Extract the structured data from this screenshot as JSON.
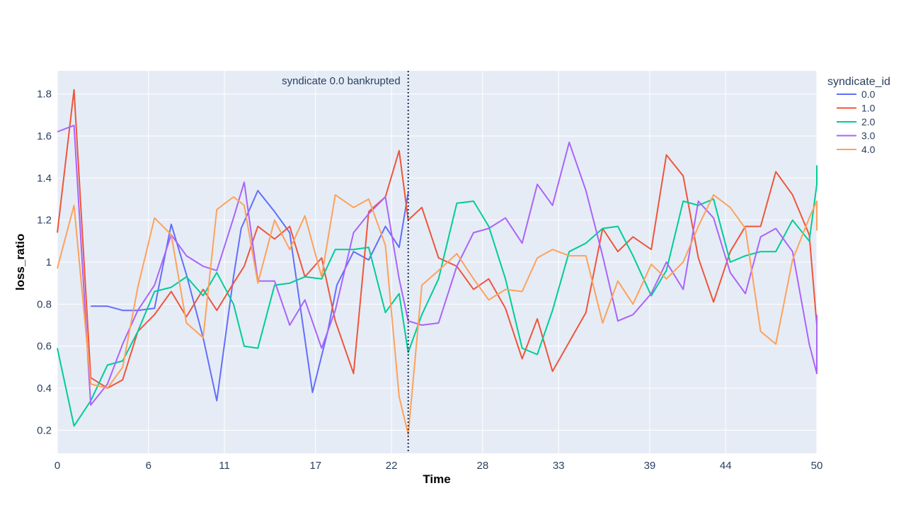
{
  "chart_data": {
    "type": "line",
    "xlabel": "Time",
    "ylabel": "loss_ratio",
    "xlim": [
      0,
      50
    ],
    "ylim": [
      0.09,
      1.91
    ],
    "x_ticks": [
      0,
      6,
      11,
      17,
      22,
      28,
      33,
      39,
      44,
      50
    ],
    "y_ticks": [
      0.2,
      0.4,
      0.6,
      0.8,
      1,
      1.2,
      1.4,
      1.6,
      1.8
    ],
    "y_tick_labels": [
      "0.2",
      "0.4",
      "0.6",
      "0.8",
      "1",
      "1.2",
      "1.4",
      "1.6",
      "1.8"
    ],
    "grid": true,
    "background": "#E5ECF6",
    "legend": {
      "title": "syndicate_id",
      "placement": "top-right"
    },
    "annotations": [
      {
        "type": "vline",
        "x": 23.1,
        "text": "syndicate 0.0 bankrupted",
        "color": "#1f2d4f",
        "style": "dotted"
      }
    ],
    "series": [
      {
        "name": "0.0",
        "color": "#636EFA",
        "points": [
          [
            2.2,
            0.79
          ],
          [
            3.3,
            0.79
          ],
          [
            4.3,
            0.77
          ],
          [
            5.3,
            0.77
          ],
          [
            6.4,
            0.78
          ],
          [
            7.5,
            1.18
          ],
          [
            8.5,
            0.94
          ],
          [
            9.6,
            0.64
          ],
          [
            10.5,
            0.34
          ],
          [
            11.6,
            0.93
          ],
          [
            12.1,
            1.16
          ],
          [
            13.2,
            1.34
          ],
          [
            14.3,
            1.24
          ],
          [
            15.3,
            1.14
          ],
          [
            16.8,
            0.38
          ],
          [
            17.8,
            0.67
          ],
          [
            18.4,
            0.89
          ],
          [
            19.5,
            1.05
          ],
          [
            20.5,
            1.01
          ],
          [
            21.6,
            1.17
          ],
          [
            22.5,
            1.07
          ],
          [
            23.1,
            1.33
          ]
        ]
      },
      {
        "name": "1.0",
        "color": "#EF553B",
        "points": [
          [
            0,
            1.14
          ],
          [
            1.1,
            1.82
          ],
          [
            2.2,
            0.45
          ],
          [
            3.3,
            0.4
          ],
          [
            4.3,
            0.44
          ],
          [
            5.3,
            0.67
          ],
          [
            6.4,
            0.75
          ],
          [
            7.5,
            0.86
          ],
          [
            8.5,
            0.74
          ],
          [
            9.6,
            0.87
          ],
          [
            10.5,
            0.77
          ],
          [
            11.6,
            0.9
          ],
          [
            12.3,
            0.98
          ],
          [
            13.2,
            1.17
          ],
          [
            14.3,
            1.11
          ],
          [
            15.3,
            1.17
          ],
          [
            16.3,
            0.93
          ],
          [
            17.4,
            1.02
          ],
          [
            18.3,
            0.72
          ],
          [
            19.5,
            0.47
          ],
          [
            20.5,
            1.24
          ],
          [
            21.6,
            1.31
          ],
          [
            22.5,
            1.53
          ],
          [
            23.1,
            1.2
          ],
          [
            24.0,
            1.26
          ],
          [
            25.1,
            1.02
          ],
          [
            26.3,
            0.98
          ],
          [
            27.4,
            0.87
          ],
          [
            28.4,
            0.92
          ],
          [
            29.5,
            0.78
          ],
          [
            30.6,
            0.54
          ],
          [
            31.6,
            0.73
          ],
          [
            32.6,
            0.48
          ],
          [
            33.7,
            0.62
          ],
          [
            34.8,
            0.76
          ],
          [
            35.9,
            1.16
          ],
          [
            36.9,
            1.05
          ],
          [
            37.9,
            1.12
          ],
          [
            39.1,
            1.06
          ],
          [
            40.1,
            1.51
          ],
          [
            41.2,
            1.41
          ],
          [
            42.2,
            1.02
          ],
          [
            43.2,
            0.81
          ],
          [
            44.3,
            1.05
          ],
          [
            45.3,
            1.17
          ],
          [
            46.3,
            1.17
          ],
          [
            47.3,
            1.43
          ],
          [
            48.4,
            1.32
          ],
          [
            49.5,
            1.13
          ],
          [
            50,
            0.7
          ]
        ]
      },
      {
        "name": "2.0",
        "color": "#00CC96",
        "points": [
          [
            0,
            0.59
          ],
          [
            1.1,
            0.22
          ],
          [
            2.2,
            0.34
          ],
          [
            3.3,
            0.51
          ],
          [
            4.3,
            0.53
          ],
          [
            5.3,
            0.67
          ],
          [
            6.4,
            0.86
          ],
          [
            7.5,
            0.88
          ],
          [
            8.5,
            0.93
          ],
          [
            9.6,
            0.84
          ],
          [
            10.5,
            0.95
          ],
          [
            11.6,
            0.8
          ],
          [
            12.3,
            0.6
          ],
          [
            13.2,
            0.59
          ],
          [
            14.3,
            0.89
          ],
          [
            15.3,
            0.9
          ],
          [
            16.3,
            0.93
          ],
          [
            17.4,
            0.92
          ],
          [
            18.3,
            1.06
          ],
          [
            19.5,
            1.06
          ],
          [
            20.5,
            1.07
          ],
          [
            21.6,
            0.76
          ],
          [
            22.5,
            0.85
          ],
          [
            23.1,
            0.57
          ],
          [
            24.0,
            0.75
          ],
          [
            25.1,
            0.92
          ],
          [
            26.3,
            1.28
          ],
          [
            27.4,
            1.29
          ],
          [
            28.4,
            1.17
          ],
          [
            29.5,
            0.92
          ],
          [
            30.6,
            0.59
          ],
          [
            31.6,
            0.56
          ],
          [
            32.6,
            0.77
          ],
          [
            33.7,
            1.05
          ],
          [
            34.8,
            1.09
          ],
          [
            35.9,
            1.16
          ],
          [
            36.9,
            1.17
          ],
          [
            37.9,
            1.03
          ],
          [
            39.1,
            0.84
          ],
          [
            40.1,
            0.96
          ],
          [
            41.2,
            1.29
          ],
          [
            42.2,
            1.27
          ],
          [
            43.2,
            1.3
          ],
          [
            44.3,
            1.0
          ],
          [
            45.3,
            1.03
          ],
          [
            46.3,
            1.05
          ],
          [
            47.3,
            1.05
          ],
          [
            48.4,
            1.2
          ],
          [
            49.5,
            1.1
          ],
          [
            50,
            1.37
          ],
          [
            50.6,
            1.46
          ]
        ]
      },
      {
        "name": "3.0",
        "color": "#AB63FA",
        "points": [
          [
            0,
            1.62
          ],
          [
            1.1,
            1.65
          ],
          [
            2.2,
            0.32
          ],
          [
            3.3,
            0.42
          ],
          [
            4.3,
            0.61
          ],
          [
            5.3,
            0.77
          ],
          [
            6.4,
            0.89
          ],
          [
            7.5,
            1.13
          ],
          [
            8.5,
            1.03
          ],
          [
            9.6,
            0.98
          ],
          [
            10.5,
            0.96
          ],
          [
            11.6,
            1.21
          ],
          [
            12.3,
            1.38
          ],
          [
            13.2,
            0.91
          ],
          [
            14.3,
            0.91
          ],
          [
            15.3,
            0.7
          ],
          [
            16.3,
            0.82
          ],
          [
            17.4,
            0.59
          ],
          [
            18.3,
            0.77
          ],
          [
            19.5,
            1.14
          ],
          [
            20.5,
            1.23
          ],
          [
            21.6,
            1.31
          ],
          [
            22.5,
            0.92
          ],
          [
            23.1,
            0.72
          ],
          [
            24.0,
            0.7
          ],
          [
            25.1,
            0.71
          ],
          [
            26.3,
            0.98
          ],
          [
            27.4,
            1.14
          ],
          [
            28.4,
            1.16
          ],
          [
            29.5,
            1.21
          ],
          [
            30.6,
            1.09
          ],
          [
            31.6,
            1.37
          ],
          [
            32.6,
            1.27
          ],
          [
            33.7,
            1.57
          ],
          [
            34.8,
            1.34
          ],
          [
            35.9,
            1.03
          ],
          [
            36.9,
            0.72
          ],
          [
            37.9,
            0.75
          ],
          [
            39.1,
            0.85
          ],
          [
            40.1,
            1.0
          ],
          [
            41.2,
            0.87
          ],
          [
            42.2,
            1.29
          ],
          [
            43.2,
            1.21
          ],
          [
            44.3,
            0.95
          ],
          [
            45.3,
            0.85
          ],
          [
            46.3,
            1.12
          ],
          [
            47.3,
            1.16
          ],
          [
            48.4,
            1.05
          ],
          [
            49.5,
            0.61
          ],
          [
            50,
            0.47
          ],
          [
            50.6,
            0.75
          ]
        ]
      },
      {
        "name": "4.0",
        "color": "#FFA15A",
        "points": [
          [
            0,
            0.97
          ],
          [
            1.1,
            1.27
          ],
          [
            2.2,
            0.42
          ],
          [
            3.3,
            0.4
          ],
          [
            4.3,
            0.5
          ],
          [
            5.3,
            0.88
          ],
          [
            6.4,
            1.21
          ],
          [
            7.5,
            1.13
          ],
          [
            8.5,
            0.71
          ],
          [
            9.6,
            0.64
          ],
          [
            10.5,
            1.25
          ],
          [
            11.6,
            1.31
          ],
          [
            12.3,
            1.27
          ],
          [
            13.2,
            0.9
          ],
          [
            14.3,
            1.2
          ],
          [
            15.3,
            1.06
          ],
          [
            16.3,
            1.22
          ],
          [
            17.4,
            0.93
          ],
          [
            18.3,
            1.32
          ],
          [
            19.5,
            1.26
          ],
          [
            20.5,
            1.3
          ],
          [
            21.6,
            1.08
          ],
          [
            22.5,
            0.36
          ],
          [
            23.1,
            0.18
          ],
          [
            24.0,
            0.89
          ],
          [
            25.1,
            0.96
          ],
          [
            26.3,
            1.04
          ],
          [
            27.4,
            0.92
          ],
          [
            28.4,
            0.82
          ],
          [
            29.5,
            0.87
          ],
          [
            30.6,
            0.86
          ],
          [
            31.6,
            1.02
          ],
          [
            32.6,
            1.06
          ],
          [
            33.7,
            1.03
          ],
          [
            34.8,
            1.03
          ],
          [
            35.9,
            0.71
          ],
          [
            36.9,
            0.91
          ],
          [
            37.9,
            0.8
          ],
          [
            39.1,
            0.99
          ],
          [
            40.1,
            0.92
          ],
          [
            41.2,
            1.0
          ],
          [
            42.2,
            1.17
          ],
          [
            43.2,
            1.32
          ],
          [
            44.3,
            1.26
          ],
          [
            45.3,
            1.16
          ],
          [
            46.3,
            0.67
          ],
          [
            47.3,
            0.61
          ],
          [
            48.4,
            1.01
          ],
          [
            49.5,
            1.21
          ],
          [
            50,
            1.29
          ],
          [
            50.6,
            1.15
          ]
        ]
      }
    ]
  }
}
